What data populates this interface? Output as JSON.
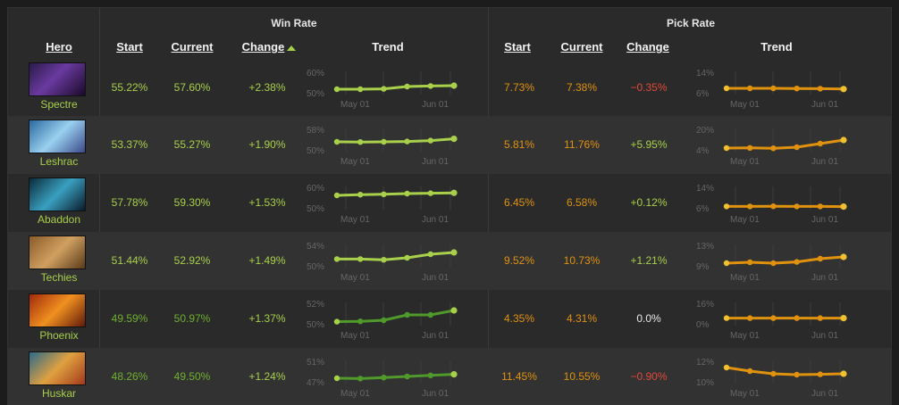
{
  "headers": {
    "win_rate": "Win Rate",
    "pick_rate": "Pick Rate",
    "hero": "Hero",
    "start": "Start",
    "current": "Current",
    "change": "Change",
    "trend": "Trend"
  },
  "colors": {
    "win": "#a8d04a",
    "win_dark": "#4f9a2a",
    "pick": "#e0920f",
    "negative": "#e04a3a",
    "neutral": "#e8e8e8"
  },
  "trend_axis": {
    "from": "May 01",
    "to": "Jun 01"
  },
  "rows": [
    {
      "hero": "Spectre",
      "hero_icon": "spectre-portrait",
      "win": {
        "start": "55.22%",
        "current": "57.60%",
        "change": "+2.38%",
        "hi": "60%",
        "lo": "50%",
        "points": [
          0.2,
          0.2,
          0.22,
          0.35,
          0.38,
          0.4
        ]
      },
      "pick": {
        "start": "7.73%",
        "current": "7.38%",
        "change": "−0.35%",
        "hi": "14%",
        "lo": "6%",
        "points": [
          0.25,
          0.25,
          0.25,
          0.24,
          0.23,
          0.21
        ]
      }
    },
    {
      "hero": "Leshrac",
      "hero_icon": "leshrac-portrait",
      "win": {
        "start": "53.37%",
        "current": "55.27%",
        "change": "+1.90%",
        "hi": "58%",
        "lo": "50%",
        "points": [
          0.45,
          0.44,
          0.45,
          0.47,
          0.52,
          0.62
        ]
      },
      "pick": {
        "start": "5.81%",
        "current": "11.76%",
        "change": "+5.95%",
        "hi": "20%",
        "lo": "4%",
        "points": [
          0.1,
          0.11,
          0.09,
          0.15,
          0.35,
          0.55
        ]
      }
    },
    {
      "hero": "Abaddon",
      "hero_icon": "abaddon-portrait",
      "win": {
        "start": "57.78%",
        "current": "59.30%",
        "change": "+1.53%",
        "hi": "60%",
        "lo": "50%",
        "points": [
          0.7,
          0.74,
          0.76,
          0.8,
          0.82,
          0.84
        ]
      },
      "pick": {
        "start": "6.45%",
        "current": "6.58%",
        "change": "+0.12%",
        "hi": "14%",
        "lo": "6%",
        "points": [
          0.08,
          0.08,
          0.09,
          0.08,
          0.08,
          0.07
        ]
      }
    },
    {
      "hero": "Techies",
      "hero_icon": "techies-portrait",
      "win": {
        "start": "51.44%",
        "current": "52.92%",
        "change": "+1.49%",
        "hi": "54%",
        "lo": "50%",
        "points": [
          0.38,
          0.38,
          0.34,
          0.45,
          0.65,
          0.75
        ]
      },
      "pick": {
        "start": "9.52%",
        "current": "10.73%",
        "change": "+1.21%",
        "hi": "13%",
        "lo": "9%",
        "points": [
          0.15,
          0.2,
          0.15,
          0.22,
          0.4,
          0.5
        ]
      }
    },
    {
      "hero": "Phoenix",
      "hero_icon": "phoenix-portrait",
      "win": {
        "start": "49.59%",
        "current": "50.97%",
        "change": "+1.37%",
        "hi": "52%",
        "lo": "50%",
        "points": [
          0.12,
          0.14,
          0.2,
          0.5,
          0.5,
          0.75
        ]
      },
      "pick": {
        "start": "4.35%",
        "current": "4.31%",
        "change": "0.0%",
        "hi": "16%",
        "lo": "0%",
        "points": [
          0.32,
          0.32,
          0.32,
          0.32,
          0.32,
          0.32
        ]
      }
    },
    {
      "hero": "Huskar",
      "hero_icon": "huskar-portrait",
      "win": {
        "start": "48.26%",
        "current": "49.50%",
        "change": "+1.24%",
        "hi": "51%",
        "lo": "47%",
        "points": [
          0.2,
          0.18,
          0.24,
          0.3,
          0.36,
          0.42
        ]
      },
      "pick": {
        "start": "11.45%",
        "current": "10.55%",
        "change": "−0.90%",
        "hi": "12%",
        "lo": "10%",
        "points": [
          0.8,
          0.6,
          0.45,
          0.4,
          0.42,
          0.45
        ]
      }
    }
  ]
}
